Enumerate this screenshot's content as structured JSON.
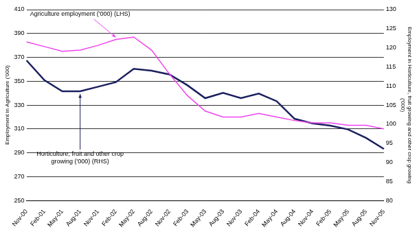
{
  "chart_data": {
    "type": "line",
    "categories": [
      "Nov-00",
      "Feb-01",
      "May-01",
      "Aug-01",
      "Nov-01",
      "Feb-02",
      "May-02",
      "Aug-02",
      "Nov-02",
      "Feb-03",
      "May-03",
      "Aug-03",
      "Nov-03",
      "Feb-04",
      "May-04",
      "Aug-04",
      "Nov-04",
      "Feb-05",
      "May-05",
      "Aug-05",
      "Nov-05"
    ],
    "series": [
      {
        "name": "Agriculture employment ('000) (LHS)",
        "color": "#ee44ee",
        "axis": "y",
        "values": [
          383,
          379,
          375,
          376,
          380,
          385,
          387,
          376,
          356,
          338,
          325,
          320,
          320,
          323,
          320,
          317,
          315,
          315,
          313,
          313,
          310
        ]
      },
      {
        "name": "Horticulture, fruit and other crop growing ('000) (RHS)",
        "color": "#1a1f5e",
        "axis": "y2",
        "values": [
          116.7,
          111.5,
          108.6,
          108.6,
          109.8,
          111,
          114.5,
          114,
          113,
          110.2,
          106.8,
          108.2,
          106.8,
          108,
          106,
          101.4,
          100.2,
          99.6,
          98.6,
          96.4,
          93.5
        ]
      }
    ],
    "y_label": "Employment in Agriculture ('000)",
    "y2_label": "Employment in Horticulture, fruit growing and other crop growing ('000)",
    "ylim": [
      250,
      410
    ],
    "yticks": [
      250,
      270,
      290,
      310,
      330,
      350,
      370,
      390,
      410
    ],
    "y2lim": [
      80,
      130
    ],
    "y2ticks": [
      80,
      85,
      90,
      95,
      100,
      105,
      110,
      115,
      120,
      125,
      130
    ],
    "grid": true
  }
}
